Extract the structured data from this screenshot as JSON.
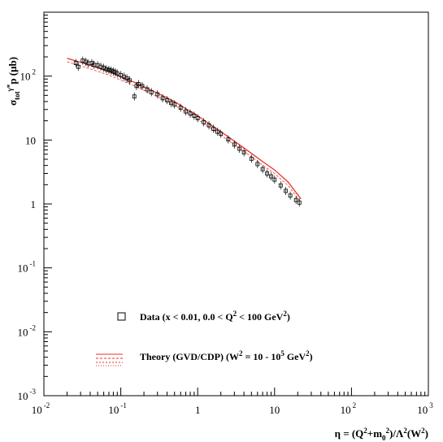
{
  "chart_data": {
    "type": "scatter",
    "title": "",
    "xscale": "log",
    "yscale": "log",
    "xlim": [
      0.01,
      1000
    ],
    "ylim": [
      0.001,
      1000
    ],
    "grid": false,
    "legend_position": "bottom-left",
    "xlabel": {
      "parts": [
        {
          "t": "η = (Q",
          "s": "n"
        },
        {
          "t": "2",
          "s": "sup"
        },
        {
          "t": "+m",
          "s": "n"
        },
        {
          "t": "0",
          "s": "sub"
        },
        {
          "t": "2",
          "s": "sup"
        },
        {
          "t": ")/Λ",
          "s": "n"
        },
        {
          "t": "2",
          "s": "sup"
        },
        {
          "t": "(W",
          "s": "n"
        },
        {
          "t": "2",
          "s": "sup"
        },
        {
          "t": ")",
          "s": "n"
        }
      ]
    },
    "ylabel": {
      "parts": [
        {
          "t": "σ",
          "s": "n"
        },
        {
          "t": "tot",
          "s": "sub"
        },
        {
          "t": "γ*",
          "s": "sup"
        },
        {
          "t": "p (μb)",
          "s": "n"
        }
      ]
    },
    "x_ticks": [
      {
        "value": 0.01,
        "base": "10",
        "exp": "-2"
      },
      {
        "value": 0.1,
        "base": "10",
        "exp": "-1"
      },
      {
        "value": 1,
        "base": "1",
        "exp": ""
      },
      {
        "value": 10,
        "base": "10",
        "exp": ""
      },
      {
        "value": 100,
        "base": "10",
        "exp": "2"
      },
      {
        "value": 1000,
        "base": "10",
        "exp": "3"
      }
    ],
    "y_ticks": [
      {
        "value": 0.001,
        "base": "10",
        "exp": "-3"
      },
      {
        "value": 0.01,
        "base": "10",
        "exp": "-2"
      },
      {
        "value": 0.1,
        "base": "10",
        "exp": "-1"
      },
      {
        "value": 1,
        "base": "1",
        "exp": ""
      },
      {
        "value": 10,
        "base": "10",
        "exp": ""
      },
      {
        "value": 100,
        "base": "10",
        "exp": "2"
      }
    ],
    "series": [
      {
        "name": "Data (x < 0.01, 0.0 < Q² < 100 GeV²)",
        "legend_parts": [
          {
            "t": "Data (x < 0.01, 0.0 < Q",
            "s": "n"
          },
          {
            "t": "2",
            "s": "sup"
          },
          {
            "t": " < 100 GeV",
            "s": "n"
          },
          {
            "t": "2",
            "s": "sup"
          },
          {
            "t": ")",
            "s": "n"
          }
        ],
        "marker": "open-square",
        "color": "#000000",
        "points": [
          [
            0.026,
            160
          ],
          [
            0.028,
            140
          ],
          [
            0.032,
            175
          ],
          [
            0.035,
            168
          ],
          [
            0.038,
            158
          ],
          [
            0.042,
            160
          ],
          [
            0.045,
            150
          ],
          [
            0.05,
            148
          ],
          [
            0.055,
            140
          ],
          [
            0.06,
            135
          ],
          [
            0.065,
            128
          ],
          [
            0.07,
            125
          ],
          [
            0.075,
            122
          ],
          [
            0.08,
            118
          ],
          [
            0.085,
            115
          ],
          [
            0.09,
            110
          ],
          [
            0.1,
            104
          ],
          [
            0.11,
            98
          ],
          [
            0.12,
            92
          ],
          [
            0.13,
            86
          ],
          [
            0.15,
            48
          ],
          [
            0.16,
            70
          ],
          [
            0.17,
            75
          ],
          [
            0.19,
            70
          ],
          [
            0.22,
            62
          ],
          [
            0.25,
            56
          ],
          [
            0.3,
            52
          ],
          [
            0.35,
            45
          ],
          [
            0.4,
            42
          ],
          [
            0.45,
            38
          ],
          [
            0.5,
            36
          ],
          [
            0.6,
            32
          ],
          [
            0.7,
            28
          ],
          [
            0.8,
            26
          ],
          [
            0.9,
            24
          ],
          [
            1.0,
            22
          ],
          [
            1.2,
            19
          ],
          [
            1.4,
            17
          ],
          [
            1.6,
            15
          ],
          [
            1.8,
            13.5
          ],
          [
            2.0,
            12.5
          ],
          [
            2.5,
            10.2
          ],
          [
            3.0,
            8.5
          ],
          [
            3.5,
            7.3
          ],
          [
            4.0,
            6.4
          ],
          [
            5.0,
            5.1
          ],
          [
            6.0,
            4.2
          ],
          [
            7.0,
            3.5
          ],
          [
            8.0,
            3.0
          ],
          [
            9.0,
            2.7
          ],
          [
            10,
            2.4
          ],
          [
            12,
            1.95
          ],
          [
            14,
            1.6
          ],
          [
            16,
            1.35
          ],
          [
            19,
            1.15
          ],
          [
            21,
            1.05
          ]
        ]
      },
      {
        "name": "Theory (GVD/CDP) (W² = 10 - 10⁵ GeV²)",
        "legend_parts": [
          {
            "t": "Theory (GVD/CDP) (W",
            "s": "n"
          },
          {
            "t": "2",
            "s": "sup"
          },
          {
            "t": " = 10 - 10",
            "s": "n"
          },
          {
            "t": "5",
            "s": "sup"
          },
          {
            "t": " GeV",
            "s": "n"
          },
          {
            "t": "2",
            "s": "sup"
          },
          {
            "t": ")",
            "s": "n"
          }
        ],
        "type": "line",
        "color": "#e8322c",
        "points": [
          [
            0.02,
            190
          ],
          [
            0.03,
            165
          ],
          [
            0.05,
            135
          ],
          [
            0.07,
            118
          ],
          [
            0.1,
            98
          ],
          [
            0.15,
            80
          ],
          [
            0.2,
            68
          ],
          [
            0.3,
            54
          ],
          [
            0.5,
            40
          ],
          [
            0.7,
            31
          ],
          [
            1.0,
            24
          ],
          [
            1.5,
            17
          ],
          [
            2.0,
            13.5
          ],
          [
            3.0,
            9.6
          ],
          [
            5.0,
            6.2
          ],
          [
            7.0,
            4.6
          ],
          [
            10,
            3.4
          ],
          [
            15,
            2.2
          ],
          [
            22,
            1.2
          ]
        ]
      }
    ]
  }
}
